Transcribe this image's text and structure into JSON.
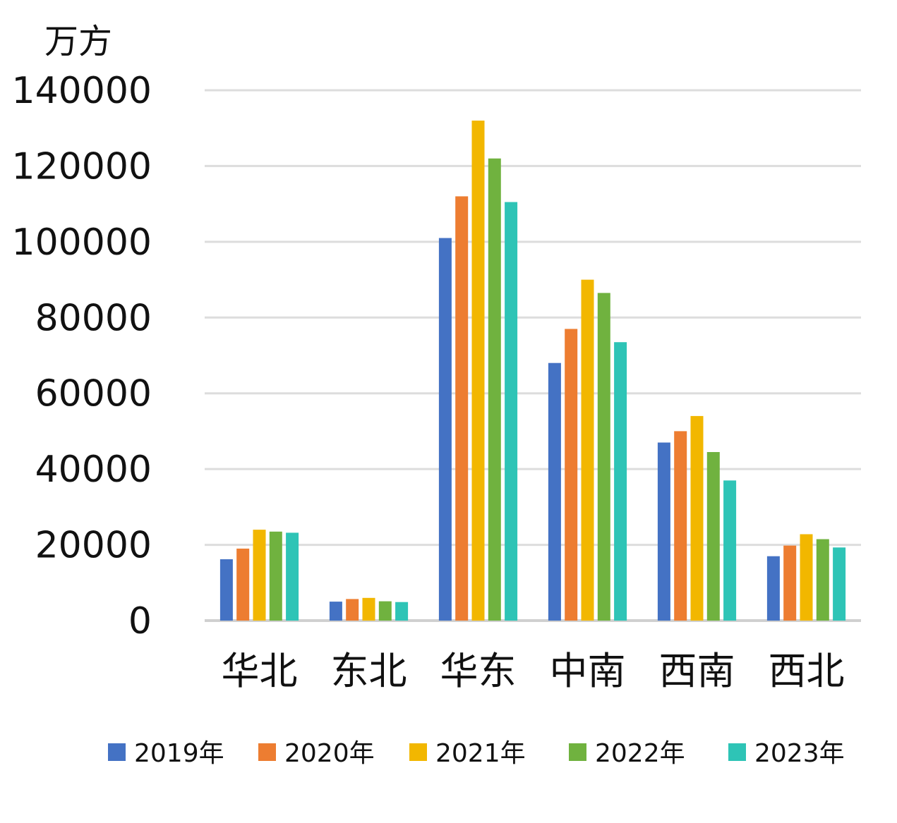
{
  "chart_data": {
    "type": "bar",
    "unit_label": "万方",
    "categories": [
      "华北",
      "东北",
      "华东",
      "中南",
      "西南",
      "西北"
    ],
    "series": [
      {
        "name": "2019年",
        "color": "#4472C4",
        "values": [
          16200,
          5000,
          101000,
          68000,
          47000,
          17000
        ]
      },
      {
        "name": "2020年",
        "color": "#ED7D31",
        "values": [
          19000,
          5700,
          112000,
          77000,
          50000,
          19800
        ]
      },
      {
        "name": "2021年",
        "color": "#F2B700",
        "values": [
          24000,
          6000,
          132000,
          90000,
          54000,
          22800
        ]
      },
      {
        "name": "2022年",
        "color": "#70B23F",
        "values": [
          23500,
          5100,
          122000,
          86500,
          44500,
          21500
        ]
      },
      {
        "name": "2023年",
        "color": "#2EC4B6",
        "values": [
          23200,
          4900,
          110500,
          73500,
          37000,
          19300
        ]
      }
    ],
    "ylim": [
      0,
      140000
    ],
    "yticks": [
      0,
      20000,
      40000,
      60000,
      80000,
      100000,
      120000,
      140000
    ],
    "ytick_labels": [
      "0",
      "20000",
      "40000",
      "60000",
      "80000",
      "100000",
      "120000",
      "140000"
    ],
    "grid": true,
    "legend_position": "bottom"
  }
}
